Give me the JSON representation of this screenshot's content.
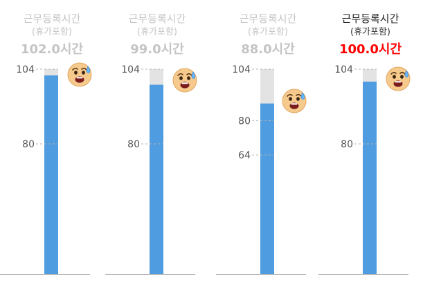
{
  "panels": [
    {
      "title": "근무등록시간",
      "subtitle": "(휴가포함)",
      "hours_label": "102.0시간",
      "active": false,
      "max": 104,
      "value": 102.0,
      "ticks": [
        104,
        80
      ],
      "icon": "anxious-sweat-face-icon"
    },
    {
      "title": "근무등록시간",
      "subtitle": "(휴가포함)",
      "hours_label": "99.0시간",
      "active": false,
      "max": 104,
      "value": 99.0,
      "ticks": [
        104,
        80
      ],
      "icon": "anxious-sweat-face-icon"
    },
    {
      "title": "근무등록시간",
      "subtitle": "(휴가포함)",
      "hours_label": "88.0시간",
      "active": false,
      "max": 104,
      "value": 88.0,
      "ticks": [
        104,
        80,
        64
      ],
      "icon": "anxious-sweat-face-icon"
    },
    {
      "title": "근무등록시간",
      "subtitle": "(휴가포함)",
      "hours_label": "100.0시간",
      "active": true,
      "max": 104,
      "value": 100.0,
      "ticks": [
        104,
        80
      ],
      "icon": "anxious-sweat-face-icon"
    }
  ],
  "colors": {
    "bar": "#4f9de0",
    "track": "#e3e3e3",
    "highlight": "#ff0000",
    "muted": "#c4c4c4"
  },
  "chart_data": [
    {
      "type": "bar",
      "categories": [
        "근무등록시간"
      ],
      "values": [
        102.0
      ],
      "yticks": [
        104,
        80
      ],
      "ylim": [
        0,
        104
      ]
    },
    {
      "type": "bar",
      "categories": [
        "근무등록시간"
      ],
      "values": [
        99.0
      ],
      "yticks": [
        104,
        80
      ],
      "ylim": [
        0,
        104
      ]
    },
    {
      "type": "bar",
      "categories": [
        "근무등록시간"
      ],
      "values": [
        88.0
      ],
      "yticks": [
        104,
        80,
        64
      ],
      "ylim": [
        0,
        104
      ]
    },
    {
      "type": "bar",
      "categories": [
        "근무등록시간"
      ],
      "values": [
        100.0
      ],
      "yticks": [
        104,
        80
      ],
      "ylim": [
        0,
        104
      ]
    }
  ]
}
